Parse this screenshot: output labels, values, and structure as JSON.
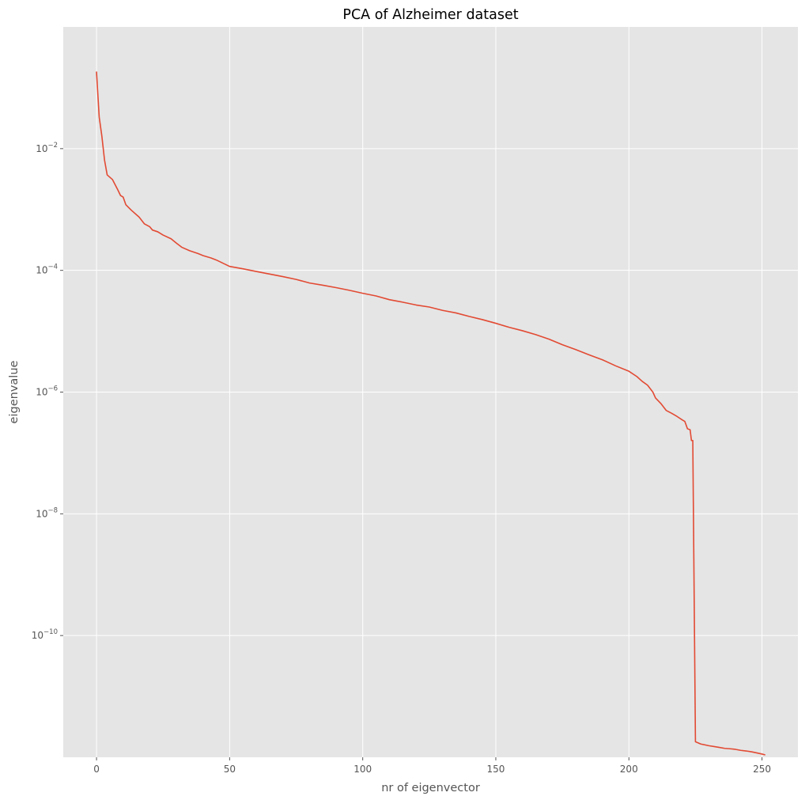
{
  "chart_data": {
    "type": "line",
    "title": "PCA of Alzheimer dataset",
    "xlabel": "nr of eigenvector",
    "ylabel": "eigenvalue",
    "xlim": [
      -12.5,
      263.5
    ],
    "ylim": [
      1e-12,
      1
    ],
    "y_scale": "log",
    "grid": true,
    "x_ticks": [
      0,
      50,
      100,
      150,
      200,
      250
    ],
    "x_tick_labels": [
      "0",
      "50",
      "100",
      "150",
      "200",
      "250"
    ],
    "y_ticks": [
      0.01,
      0.0001,
      1e-06,
      1e-08,
      1e-10
    ],
    "y_tick_labels": [
      {
        "base": "10",
        "exp": "−2"
      },
      {
        "base": "10",
        "exp": "−4"
      },
      {
        "base": "10",
        "exp": "−6"
      },
      {
        "base": "10",
        "exp": "−8"
      },
      {
        "base": "10",
        "exp": "−10"
      }
    ],
    "colors": {
      "background": "#e5e5e5",
      "grid": "#ffffff",
      "line": "#e24a33"
    },
    "series": [
      {
        "points": [
          [
            0,
            0.18
          ],
          [
            1,
            0.033
          ],
          [
            2,
            0.016
          ],
          [
            3,
            0.0065
          ],
          [
            4,
            0.0037
          ],
          [
            6,
            0.0031
          ],
          [
            8,
            0.0021
          ],
          [
            9,
            0.0017
          ],
          [
            10,
            0.0016
          ],
          [
            11,
            0.0012
          ],
          [
            13,
            0.00098
          ],
          [
            16,
            0.00075
          ],
          [
            18,
            0.00058
          ],
          [
            20,
            0.00052
          ],
          [
            21,
            0.00046
          ],
          [
            23,
            0.00043
          ],
          [
            25,
            0.00038
          ],
          [
            28,
            0.00033
          ],
          [
            30,
            0.00028
          ],
          [
            32,
            0.00024
          ],
          [
            35,
            0.00021
          ],
          [
            38,
            0.00019
          ],
          [
            40,
            0.000175
          ],
          [
            43,
            0.00016
          ],
          [
            45,
            0.000148
          ],
          [
            48,
            0.000128
          ],
          [
            50,
            0.000116
          ],
          [
            55,
            0.000106
          ],
          [
            60,
            9.6e-05
          ],
          [
            65,
            8.7e-05
          ],
          [
            70,
            7.9e-05
          ],
          [
            75,
            7.1e-05
          ],
          [
            80,
            6.2e-05
          ],
          [
            85,
            5.7e-05
          ],
          [
            90,
            5.2e-05
          ],
          [
            95,
            4.7e-05
          ],
          [
            100,
            4.2e-05
          ],
          [
            105,
            3.8e-05
          ],
          [
            110,
            3.3e-05
          ],
          [
            115,
            3e-05
          ],
          [
            120,
            2.7e-05
          ],
          [
            125,
            2.5e-05
          ],
          [
            130,
            2.2e-05
          ],
          [
            135,
            2e-05
          ],
          [
            140,
            1.75e-05
          ],
          [
            145,
            1.55e-05
          ],
          [
            150,
            1.35e-05
          ],
          [
            155,
            1.16e-05
          ],
          [
            160,
            1.02e-05
          ],
          [
            165,
            8.8e-06
          ],
          [
            170,
            7.4e-06
          ],
          [
            175,
            6e-06
          ],
          [
            180,
            5e-06
          ],
          [
            185,
            4.1e-06
          ],
          [
            190,
            3.4e-06
          ],
          [
            195,
            2.7e-06
          ],
          [
            200,
            2.2e-06
          ],
          [
            203,
            1.8e-06
          ],
          [
            205,
            1.5e-06
          ],
          [
            207,
            1.3e-06
          ],
          [
            209,
            1e-06
          ],
          [
            210,
            8e-07
          ],
          [
            212,
            6.5e-07
          ],
          [
            214,
            5e-07
          ],
          [
            216,
            4.5e-07
          ],
          [
            218,
            4e-07
          ],
          [
            220,
            3.5e-07
          ],
          [
            221,
            3.3e-07
          ],
          [
            222,
            2.5e-07
          ],
          [
            223,
            2.4e-07
          ],
          [
            223.5,
            1.6e-07
          ],
          [
            224,
            1.6e-07
          ],
          [
            225,
            1.8e-12
          ],
          [
            227,
            1.65e-12
          ],
          [
            230,
            1.55e-12
          ],
          [
            232,
            1.5e-12
          ],
          [
            234,
            1.45e-12
          ],
          [
            236,
            1.4e-12
          ],
          [
            238,
            1.38e-12
          ],
          [
            240,
            1.35e-12
          ],
          [
            242,
            1.3e-12
          ],
          [
            244,
            1.27e-12
          ],
          [
            246,
            1.23e-12
          ],
          [
            248,
            1.18e-12
          ],
          [
            250,
            1.13e-12
          ],
          [
            251,
            1.1e-12
          ]
        ]
      }
    ]
  }
}
